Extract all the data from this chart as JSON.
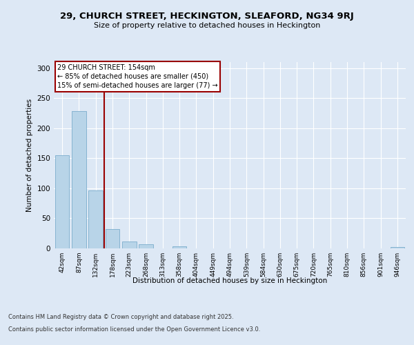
{
  "title1": "29, CHURCH STREET, HECKINGTON, SLEAFORD, NG34 9RJ",
  "title2": "Size of property relative to detached houses in Heckington",
  "xlabel": "Distribution of detached houses by size in Heckington",
  "ylabel": "Number of detached properties",
  "bin_labels": [
    "42sqm",
    "87sqm",
    "132sqm",
    "178sqm",
    "223sqm",
    "268sqm",
    "313sqm",
    "358sqm",
    "404sqm",
    "449sqm",
    "494sqm",
    "539sqm",
    "584sqm",
    "630sqm",
    "675sqm",
    "720sqm",
    "765sqm",
    "810sqm",
    "856sqm",
    "901sqm",
    "946sqm"
  ],
  "bar_values": [
    155,
    228,
    97,
    32,
    11,
    7,
    0,
    3,
    0,
    0,
    0,
    0,
    0,
    0,
    0,
    0,
    0,
    0,
    0,
    0,
    2
  ],
  "bar_color": "#b8d4e8",
  "bar_edge_color": "#7aadcc",
  "vline_x": 2.5,
  "vline_color": "#990000",
  "annotation_text": "29 CHURCH STREET: 154sqm\n← 85% of detached houses are smaller (450)\n15% of semi-detached houses are larger (77) →",
  "annotation_box_color": "#ffffff",
  "annotation_box_edge": "#990000",
  "ylim": [
    0,
    310
  ],
  "yticks": [
    0,
    50,
    100,
    150,
    200,
    250,
    300
  ],
  "bg_color": "#dde8f5",
  "footer1": "Contains HM Land Registry data © Crown copyright and database right 2025.",
  "footer2": "Contains public sector information licensed under the Open Government Licence v3.0."
}
